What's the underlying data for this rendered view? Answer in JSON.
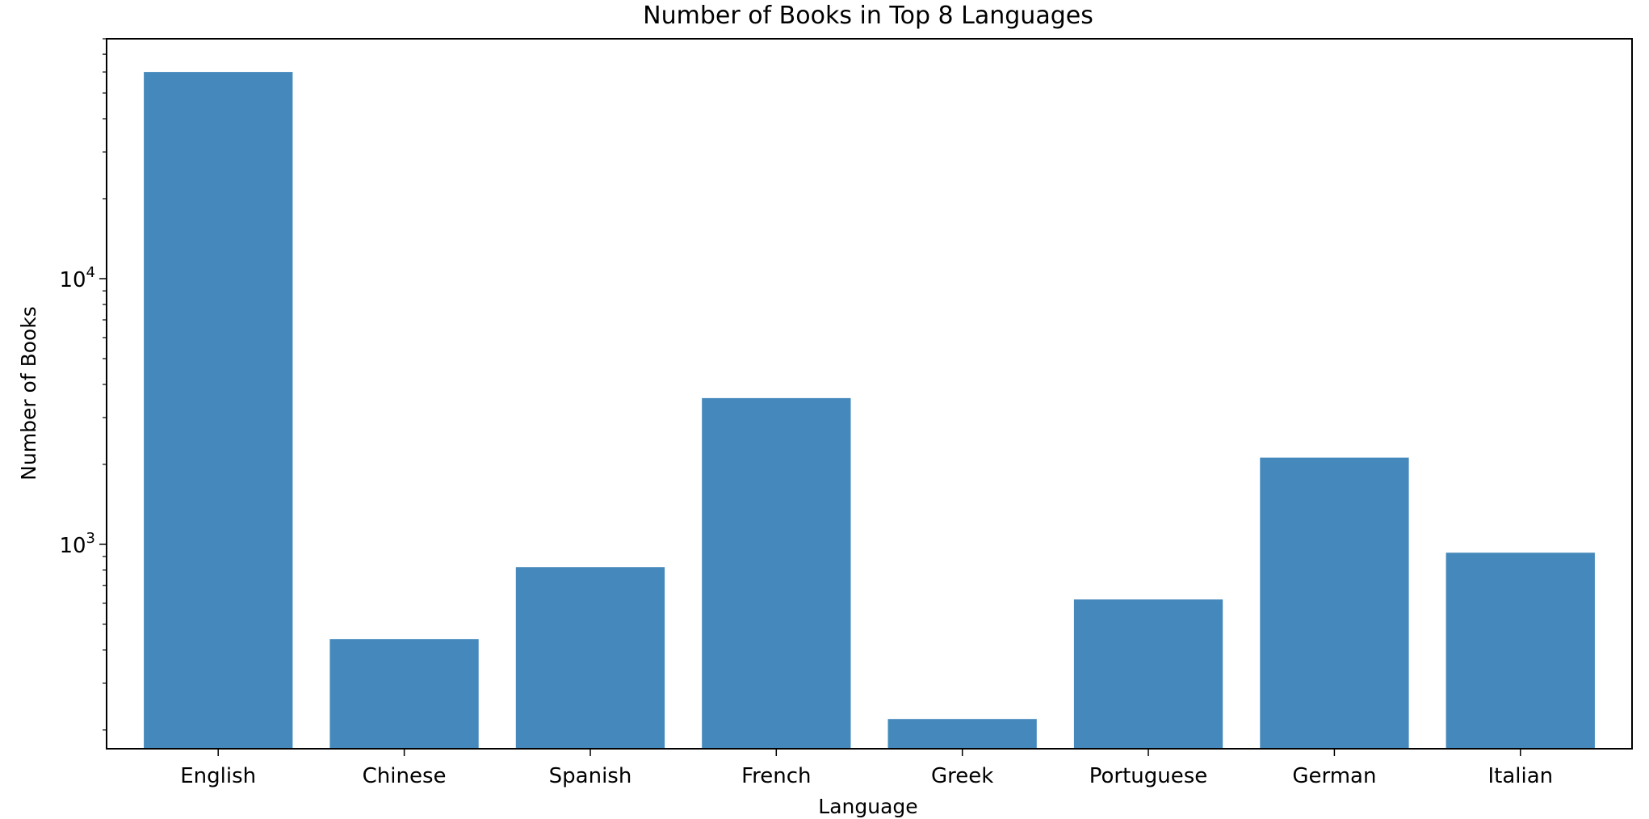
{
  "chart_data": {
    "type": "bar",
    "title": "Number of Books in Top 8 Languages",
    "xlabel": "Language",
    "ylabel": "Number of Books",
    "categories": [
      "English",
      "Chinese",
      "Spanish",
      "French",
      "Greek",
      "Portuguese",
      "German",
      "Italian"
    ],
    "values": [
      60000,
      440,
      820,
      3550,
      220,
      620,
      2120,
      930
    ],
    "y_scale": "log",
    "ylim": [
      170,
      80000
    ],
    "y_major_ticks": [
      1000,
      10000
    ],
    "y_major_tick_labels": [
      {
        "base": "10",
        "exponent": "3"
      },
      {
        "base": "10",
        "exponent": "4"
      }
    ],
    "bar_color": "#4589bc",
    "grid": false,
    "legend": "none"
  }
}
